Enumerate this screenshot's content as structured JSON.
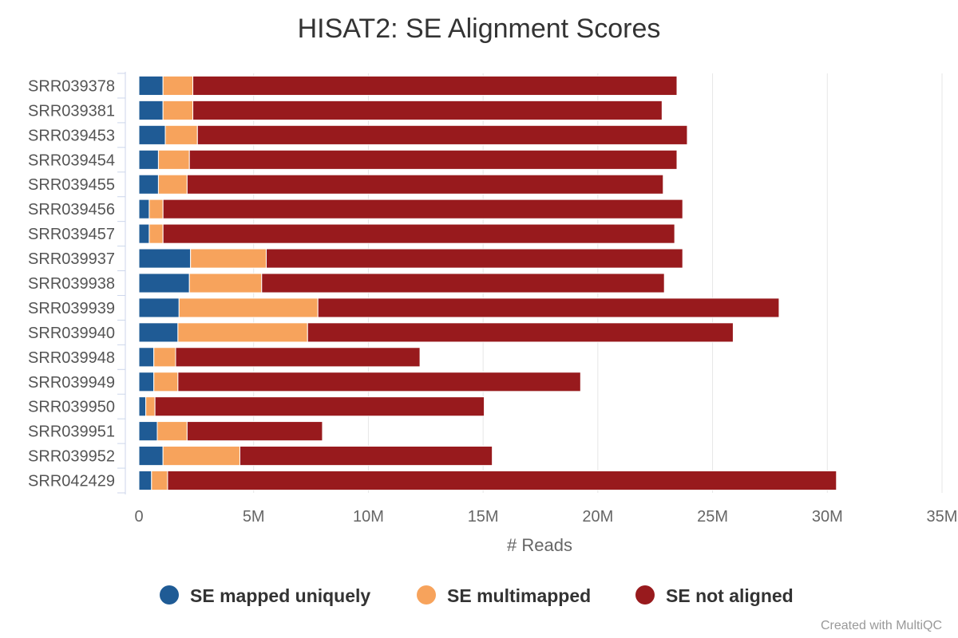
{
  "chart_data": {
    "type": "bar",
    "orientation": "horizontal",
    "stacked": true,
    "title": "HISAT2: SE Alignment Scores",
    "xlabel": "# Reads",
    "ylabel": "",
    "xlim": [
      0,
      35000000
    ],
    "x_ticks": [
      0,
      5000000,
      10000000,
      15000000,
      20000000,
      25000000,
      30000000,
      35000000
    ],
    "x_tick_labels": [
      "0",
      "5M",
      "10M",
      "15M",
      "20M",
      "25M",
      "30M",
      "35M"
    ],
    "grid": "vertical",
    "legend_position": "bottom",
    "categories": [
      "SRR039378",
      "SRR039381",
      "SRR039453",
      "SRR039454",
      "SRR039455",
      "SRR039456",
      "SRR039457",
      "SRR039937",
      "SRR039938",
      "SRR039939",
      "SRR039940",
      "SRR039948",
      "SRR039949",
      "SRR039950",
      "SRR039951",
      "SRR039952",
      "SRR042429"
    ],
    "series": [
      {
        "name": "SE mapped uniquely",
        "color": "#1f5b95",
        "values": [
          1050000,
          1050000,
          1150000,
          850000,
          850000,
          450000,
          450000,
          2250000,
          2200000,
          1750000,
          1700000,
          650000,
          650000,
          300000,
          800000,
          1050000,
          550000
        ]
      },
      {
        "name": "SE multimapped",
        "color": "#f7a35c",
        "values": [
          1300000,
          1300000,
          1400000,
          1350000,
          1250000,
          600000,
          600000,
          3300000,
          3150000,
          6050000,
          5650000,
          950000,
          1050000,
          400000,
          1300000,
          3350000,
          700000
        ]
      },
      {
        "name": "SE not aligned",
        "color": "#981a1d",
        "values": [
          21100000,
          20450000,
          21350000,
          21250000,
          20750000,
          22650000,
          22300000,
          18150000,
          17550000,
          20100000,
          18550000,
          10650000,
          17550000,
          14350000,
          5900000,
          11000000,
          29150000
        ]
      }
    ]
  },
  "credit": "Created with MultiQC"
}
